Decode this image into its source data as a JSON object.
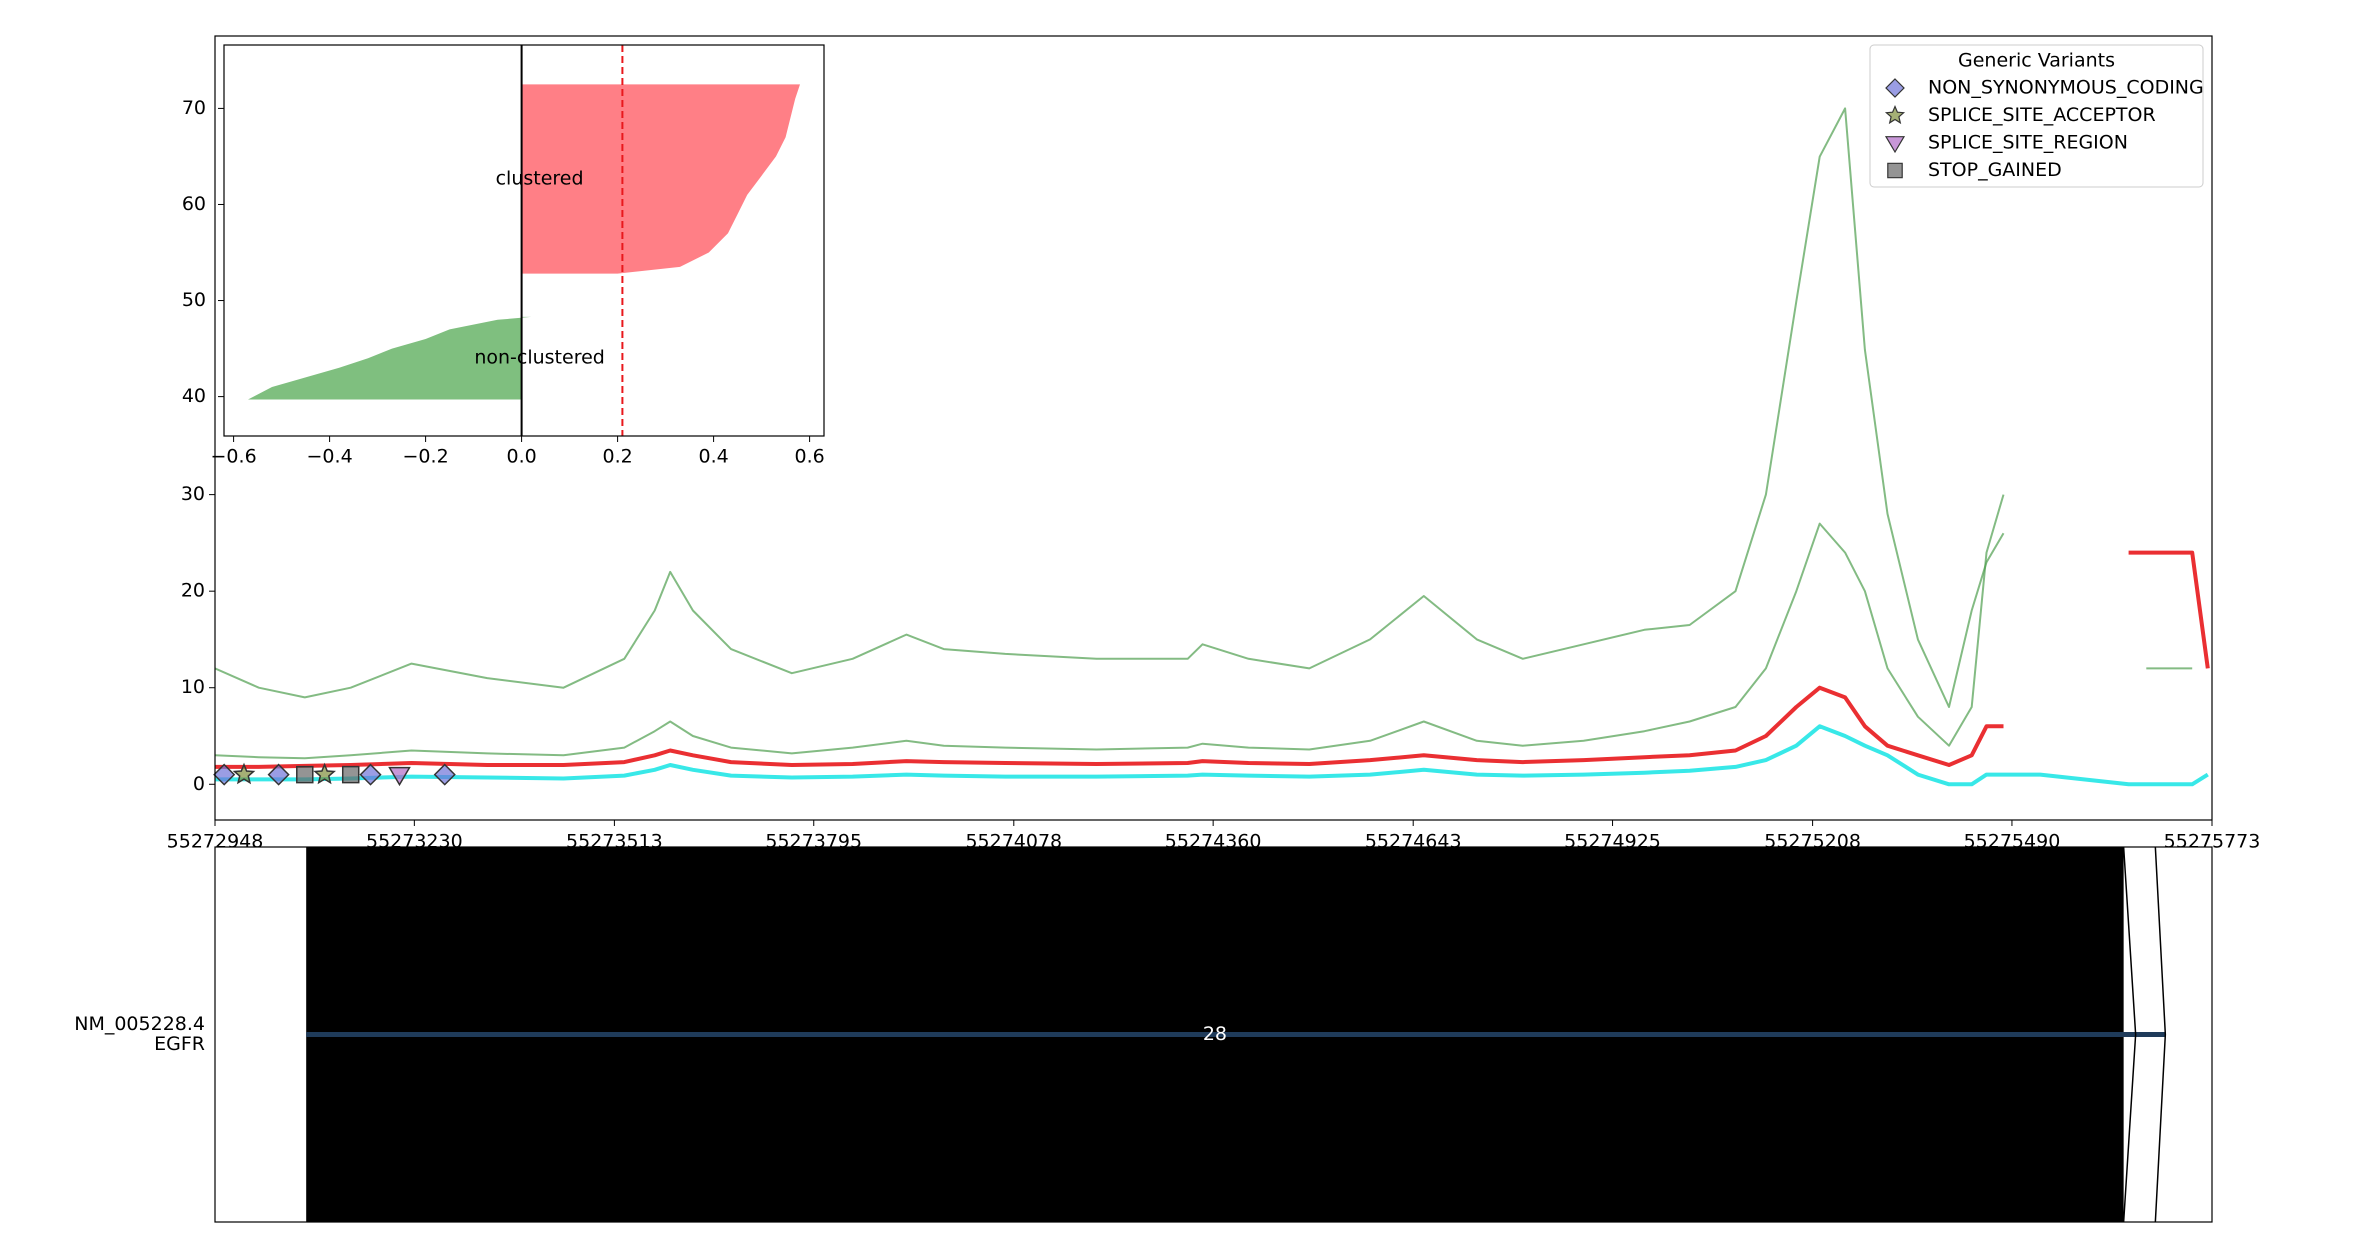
{
  "chart_data": [
    {
      "type": "line",
      "xlim": [
        55272948,
        55275773
      ],
      "xticks": [
        55272948,
        55273230,
        55273513,
        55273795,
        55274078,
        55274360,
        55274643,
        55274925,
        55275208,
        55275490,
        55275773
      ],
      "ylim": [
        -3.7,
        77.5
      ],
      "yticks": [
        0,
        10,
        20,
        30
      ],
      "grid": false,
      "x": [
        55272948,
        55273010,
        55273075,
        55273140,
        55273226,
        55273333,
        55273441,
        55273527,
        55273570,
        55273592,
        55273624,
        55273678,
        55273764,
        55273850,
        55273926,
        55273979,
        55274066,
        55274195,
        55274324,
        55274345,
        55274410,
        55274496,
        55274582,
        55274658,
        55274733,
        55274798,
        55274884,
        55274970,
        55275034,
        55275099,
        55275142,
        55275185,
        55275218,
        55275254,
        55275282,
        55275314,
        55275357,
        55275401,
        55275433,
        55275454,
        55275478,
        55275530,
        55275655,
        55275680,
        55275745,
        55275767
      ],
      "series": [
        {
          "color": "#4f9e4f",
          "values": [
            12,
            10,
            9,
            10,
            12.5,
            11,
            10,
            13,
            18,
            22,
            18,
            14,
            11.5,
            13,
            15.5,
            14,
            13.5,
            13,
            13,
            14.5,
            13,
            12,
            15,
            19.5,
            15,
            13,
            14.5,
            16,
            16.5,
            20,
            30,
            50,
            65,
            70,
            45,
            28,
            15,
            8,
            18,
            23,
            26,
            null,
            null,
            null,
            null,
            null
          ]
        },
        {
          "color": "#4f9e4f",
          "values": [
            3,
            2.8,
            2.7,
            3,
            3.5,
            3.2,
            3,
            3.8,
            5.5,
            6.5,
            5,
            3.8,
            3.2,
            3.8,
            4.5,
            4,
            3.8,
            3.6,
            3.8,
            4.2,
            3.8,
            3.6,
            4.5,
            6.5,
            4.5,
            4,
            4.5,
            5.5,
            6.5,
            8,
            12,
            20,
            27,
            24,
            20,
            12,
            7,
            4,
            8,
            24,
            30,
            null,
            null,
            12,
            12,
            null
          ]
        },
        {
          "color": "#e8181c",
          "values": [
            1.8,
            1.8,
            1.9,
            2,
            2.2,
            2,
            2,
            2.3,
            3,
            3.5,
            3,
            2.3,
            2,
            2.1,
            2.4,
            2.3,
            2.2,
            2.1,
            2.2,
            2.4,
            2.2,
            2.1,
            2.5,
            3,
            2.5,
            2.3,
            2.5,
            2.8,
            3,
            3.5,
            5,
            8,
            10,
            9,
            6,
            4,
            3,
            2,
            3,
            6,
            6,
            null,
            24,
            24,
            24,
            12
          ]
        },
        {
          "color": "#22e5e5",
          "values": [
            0.5,
            0.5,
            0.5,
            0.6,
            0.8,
            0.7,
            0.6,
            0.9,
            1.5,
            2,
            1.5,
            0.9,
            0.7,
            0.8,
            1,
            0.9,
            0.8,
            0.8,
            0.9,
            1,
            0.9,
            0.8,
            1,
            1.5,
            1,
            0.9,
            1,
            1.2,
            1.4,
            1.8,
            2.5,
            4,
            6,
            5,
            4,
            3,
            1,
            0,
            0,
            1,
            1,
            1,
            0,
            0,
            0,
            1
          ]
        }
      ],
      "legend": "upper right",
      "legend_title": "Generic Variants",
      "variants": [
        {
          "name": "NON_SYNONYMOUS_CODING",
          "marker": "diamond",
          "color": "#6f74d8",
          "x": [
            55272961,
            55273038,
            55273168,
            55273273
          ],
          "values": [
            1,
            1,
            1,
            1
          ]
        },
        {
          "name": "SPLICE_SITE_ACCEPTOR",
          "marker": "star",
          "color": "#7f8f3a",
          "x": [
            55272989,
            55273103
          ],
          "values": [
            1,
            1
          ]
        },
        {
          "name": "SPLICE_SITE_REGION",
          "marker": "triangle-down",
          "color": "#b06bc8",
          "x": [
            55273209
          ],
          "values": [
            1
          ]
        },
        {
          "name": "STOP_GAINED",
          "marker": "square",
          "color": "#666666",
          "x": [
            55273075,
            55273140
          ],
          "values": [
            1,
            1
          ]
        }
      ]
    },
    {
      "type": "area",
      "xlim": [
        -0.62,
        0.63
      ],
      "xticks": [
        {
          "value": -0.6,
          "label": "−0.6"
        },
        {
          "value": -0.4,
          "label": "−0.4"
        },
        {
          "value": -0.2,
          "label": "−0.2"
        },
        {
          "value": 0,
          "label": "0.0"
        },
        0.2,
        0.4,
        0.6
      ],
      "ylim": [
        35.9,
        76.6
      ],
      "yticks": [
        40,
        50,
        60,
        70
      ],
      "threshold": 0.21,
      "series": [
        {
          "name": "clustered",
          "color": "#ff7f86",
          "y": [
            52.8,
            53.5,
            55,
            57,
            59,
            61,
            63,
            65,
            67,
            69,
            71,
            72.5
          ],
          "values": [
            0.2,
            0.33,
            0.39,
            0.43,
            0.45,
            0.47,
            0.5,
            0.53,
            0.55,
            0.56,
            0.57,
            0.58
          ]
        },
        {
          "name": "non-clustered",
          "color": "#7fbf7f",
          "y": [
            39.7,
            41,
            42,
            43,
            44,
            45,
            46,
            47,
            48,
            48.3
          ],
          "values": [
            -0.57,
            -0.52,
            -0.45,
            -0.38,
            -0.32,
            -0.27,
            -0.2,
            -0.15,
            -0.05,
            0.02
          ]
        }
      ]
    }
  ],
  "gene_track": {
    "transcript": "NM_005228.4",
    "gene": "EGFR",
    "exon_label": "28",
    "exon_start": 55273077,
    "exon_end": 55275648,
    "line_end": 55275707
  }
}
